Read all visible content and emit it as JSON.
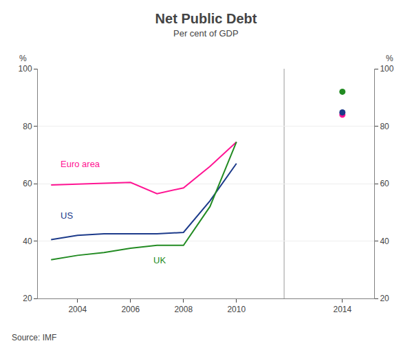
{
  "chart_data": {
    "type": "line",
    "title": "Net Public Debt",
    "subtitle": "Per cent of GDP",
    "source": "Source: IMF",
    "ylabel": "%",
    "y2label": "%",
    "xlim": [
      2002.5,
      2015.2
    ],
    "xticks": [
      2004,
      2006,
      2008,
      2010,
      2014
    ],
    "ylim": [
      20,
      100
    ],
    "yticks": [
      20,
      40,
      60,
      80,
      100
    ],
    "y2lim": [
      20,
      100
    ],
    "y2ticks": [
      20,
      40,
      60,
      80,
      100
    ],
    "grid": true,
    "vlines": [
      2011.8
    ],
    "series": [
      {
        "type": "line",
        "color": "#FF1493",
        "x": [
          2003,
          2004,
          2005,
          2006,
          2007,
          2008,
          2009,
          2010
        ],
        "values": [
          59.5,
          59.8,
          60.2,
          60.4,
          56.5,
          58.5,
          66.0,
          74.5
        ]
      },
      {
        "type": "line",
        "color": "#1C3A8A",
        "x": [
          2003,
          2004,
          2005,
          2006,
          2007,
          2008,
          2009,
          2010
        ],
        "values": [
          40.5,
          42.0,
          42.5,
          42.5,
          42.5,
          43.0,
          54.0,
          67.0
        ]
      },
      {
        "type": "line",
        "color": "#228B22",
        "x": [
          2003,
          2004,
          2005,
          2006,
          2007,
          2008,
          2009,
          2010
        ],
        "values": [
          33.5,
          35.0,
          36.0,
          37.5,
          38.5,
          38.5,
          52.0,
          74.5
        ]
      },
      {
        "type": "scatter",
        "marker": "circle",
        "color": "#FF1493",
        "x": [
          2014
        ],
        "values": [
          84.0
        ]
      },
      {
        "type": "scatter",
        "marker": "circle",
        "color": "#1C3A8A",
        "x": [
          2014
        ],
        "values": [
          84.8
        ]
      },
      {
        "type": "scatter",
        "marker": "circle",
        "color": "#228B22",
        "x": [
          2014
        ],
        "values": [
          92.0
        ]
      }
    ],
    "annotations": [
      {
        "text": "Euro area",
        "x": 2003.3,
        "y": 64.5,
        "color": "#FF1493"
      },
      {
        "text": "US",
        "x": 2003.3,
        "y": 46.5,
        "color": "#1C3A8A"
      },
      {
        "text": "UK",
        "x": 2006.8,
        "y": 31.0,
        "color": "#228B22"
      }
    ]
  }
}
